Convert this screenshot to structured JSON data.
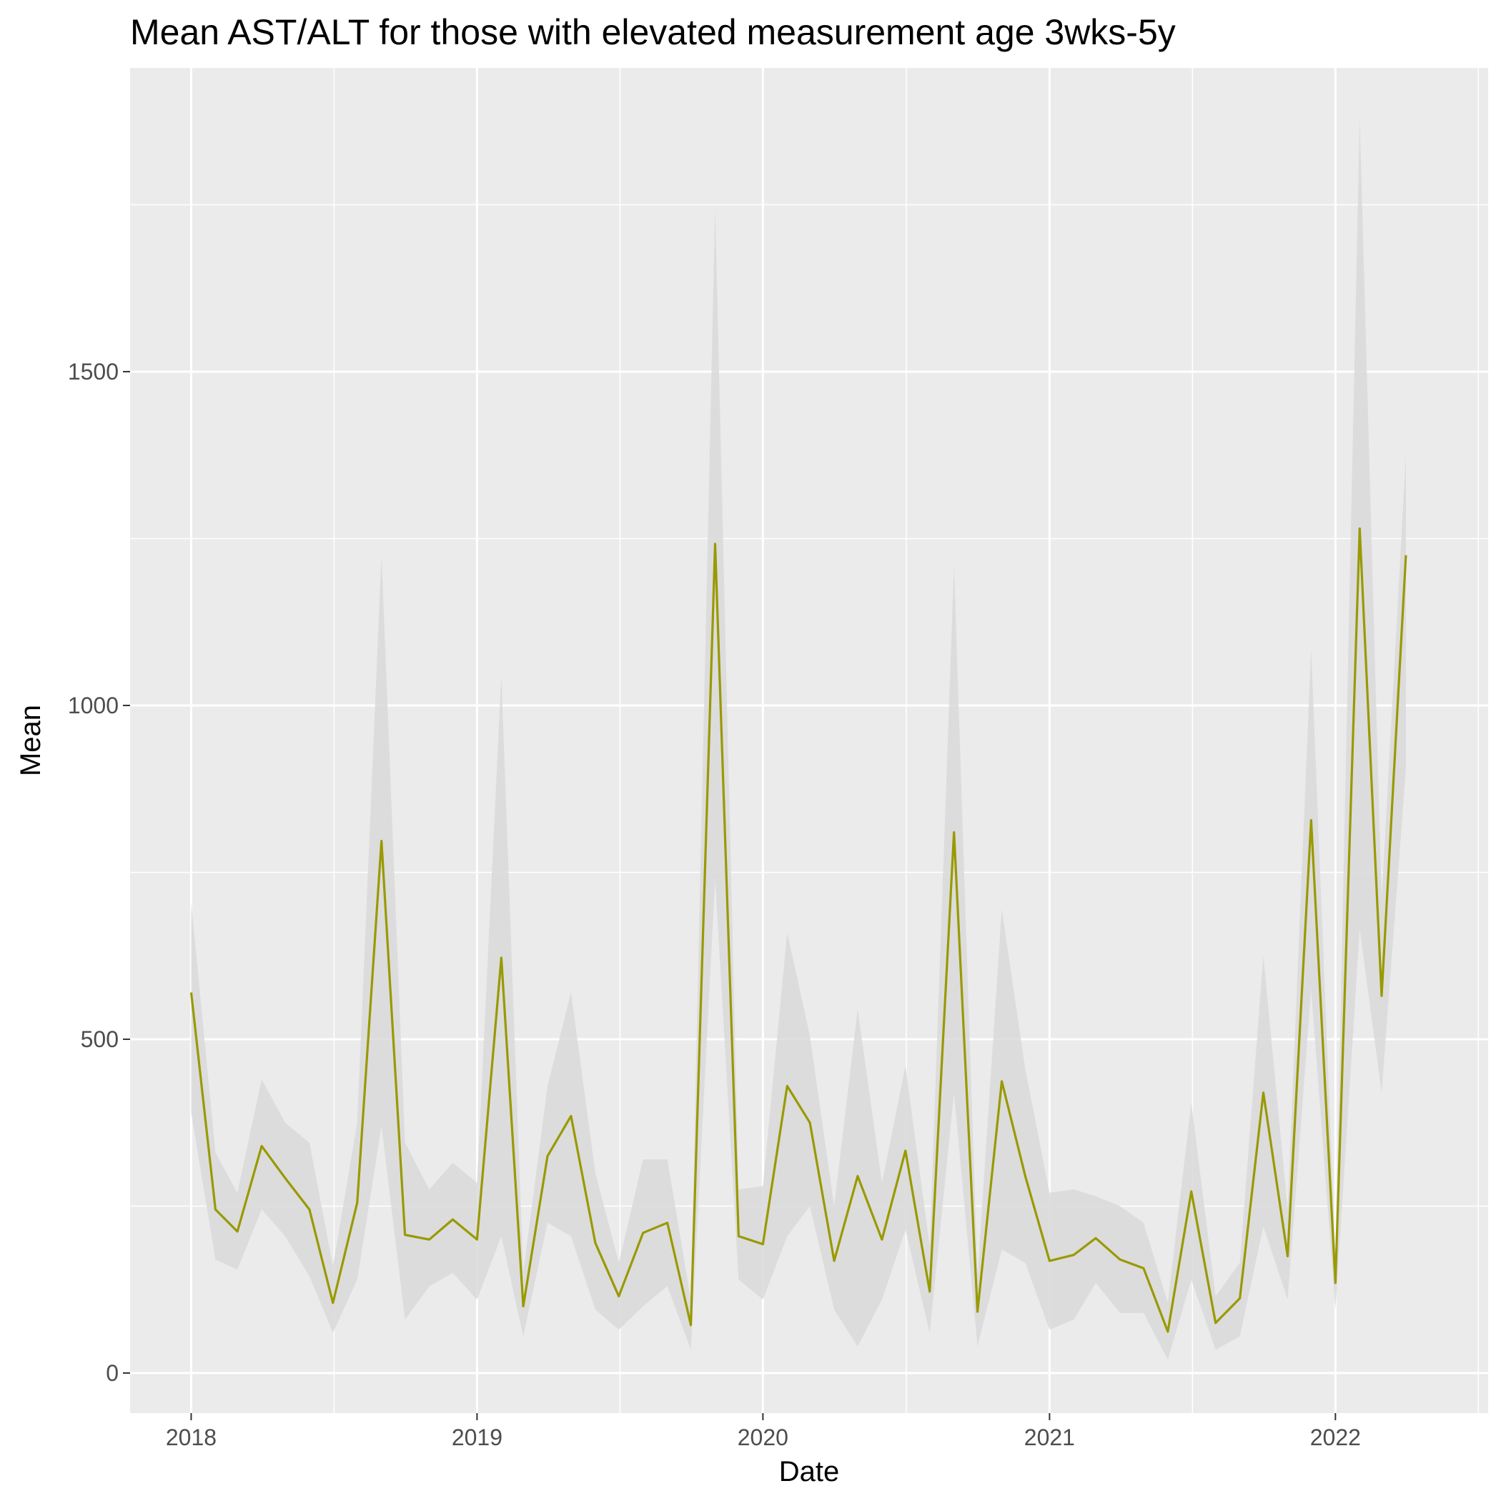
{
  "chart_data": {
    "type": "line",
    "title": "Mean AST/ALT for those with elevated measurement age 3wks-5y",
    "xlabel": "Date",
    "ylabel": "Mean",
    "x_axis_type": "date",
    "x_ticks": [
      "2018",
      "2019",
      "2020",
      "2021",
      "2022"
    ],
    "x_tick_values": [
      "2018-01-01",
      "2019-01-01",
      "2020-01-01",
      "2021-01-01",
      "2022-01-01"
    ],
    "xlim": [
      "2017-10-15",
      "2022-07-15"
    ],
    "y_ticks": [
      0,
      500,
      1000,
      1500
    ],
    "ylim": [
      -60,
      1955
    ],
    "grid": true,
    "legend": "none",
    "colors": {
      "line": "#999900",
      "ribbon": "#d9d9d9",
      "panel_background": "#ebebeb",
      "grid": "#ffffff"
    },
    "series": [
      {
        "x": [
          "2018-01-01",
          "2018-02-01",
          "2018-03-01",
          "2018-04-01",
          "2018-05-01",
          "2018-06-01",
          "2018-07-01",
          "2018-08-01",
          "2018-09-01",
          "2018-10-01",
          "2018-11-01",
          "2018-12-01",
          "2019-01-01",
          "2019-02-01",
          "2019-03-01",
          "2019-04-01",
          "2019-05-01",
          "2019-06-01",
          "2019-07-01",
          "2019-08-01",
          "2019-09-01",
          "2019-10-01",
          "2019-11-01",
          "2019-12-01",
          "2020-01-01",
          "2020-02-01",
          "2020-03-01",
          "2020-04-01",
          "2020-05-01",
          "2020-06-01",
          "2020-07-01",
          "2020-08-01",
          "2020-09-01",
          "2020-10-01",
          "2020-11-01",
          "2020-12-01",
          "2021-01-01",
          "2021-02-01",
          "2021-03-01",
          "2021-04-01",
          "2021-05-01",
          "2021-06-01",
          "2021-07-01",
          "2021-08-01",
          "2021-09-01",
          "2021-10-01",
          "2021-11-01",
          "2021-12-01",
          "2022-01-01",
          "2022-02-01",
          "2022-03-01",
          "2022-04-01"
        ],
        "values": [
          570,
          245,
          212,
          340,
          292,
          245,
          105,
          255,
          797,
          207,
          200,
          230,
          200,
          622,
          100,
          325,
          385,
          195,
          115,
          210,
          225,
          72,
          1242,
          205,
          193,
          430,
          375,
          168,
          295,
          200,
          333,
          122,
          810,
          92,
          437,
          295,
          168,
          177,
          202,
          170,
          157,
          62,
          272,
          75,
          112,
          420,
          175,
          828,
          135,
          1265,
          565,
          1225
        ],
        "lower": [
          390,
          170,
          155,
          245,
          205,
          145,
          60,
          140,
          370,
          80,
          130,
          150,
          110,
          205,
          55,
          225,
          205,
          95,
          65,
          100,
          130,
          35,
          740,
          140,
          110,
          205,
          250,
          95,
          40,
          110,
          215,
          60,
          420,
          40,
          185,
          165,
          65,
          80,
          135,
          90,
          90,
          20,
          140,
          35,
          55,
          220,
          110,
          575,
          95,
          665,
          420,
          905
        ],
        "upper": [
          705,
          330,
          270,
          440,
          375,
          345,
          160,
          375,
          1225,
          345,
          275,
          315,
          285,
          1045,
          150,
          430,
          570,
          300,
          165,
          320,
          320,
          110,
          1745,
          275,
          280,
          660,
          505,
          250,
          545,
          285,
          460,
          190,
          1210,
          145,
          695,
          455,
          270,
          275,
          265,
          250,
          225,
          105,
          405,
          115,
          165,
          625,
          245,
          1085,
          180,
          1880,
          710,
          1375
        ]
      }
    ]
  }
}
